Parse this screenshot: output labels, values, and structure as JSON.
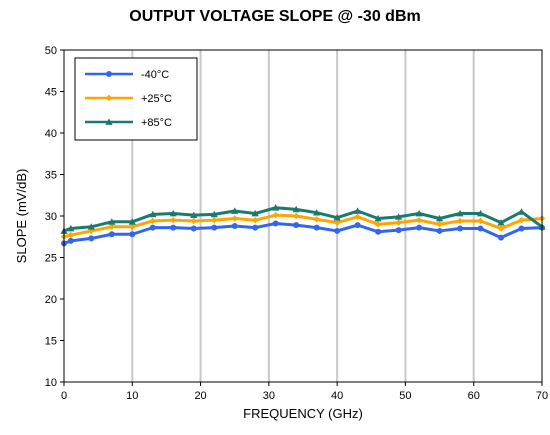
{
  "chart_data": {
    "type": "line",
    "title": "OUTPUT VOLTAGE SLOPE @ -30 dBm",
    "xlabel": "FREQUENCY (GHz)",
    "ylabel": "SLOPE (mV/dB)",
    "xlim": [
      0,
      70
    ],
    "ylim": [
      10,
      50
    ],
    "xticks": [
      "0",
      "10",
      "20",
      "30",
      "40",
      "50",
      "60",
      "70"
    ],
    "yticks": [
      "10",
      "15",
      "20",
      "25",
      "30",
      "35",
      "40",
      "45",
      "50"
    ],
    "grid": "vertical",
    "legend_position": "top-left",
    "x": [
      0,
      1,
      4,
      7,
      10,
      13,
      16,
      19,
      22,
      25,
      28,
      31,
      34,
      37,
      40,
      43,
      46,
      49,
      52,
      55,
      58,
      61,
      64,
      67,
      70
    ],
    "series": [
      {
        "name": "-40°C",
        "color": "#3366ee",
        "marker": "circle",
        "values": [
          26.7,
          27.0,
          27.3,
          27.8,
          27.8,
          28.6,
          28.6,
          28.5,
          28.6,
          28.8,
          28.6,
          29.1,
          28.9,
          28.6,
          28.2,
          28.9,
          28.1,
          28.3,
          28.6,
          28.2,
          28.5,
          28.5,
          27.4,
          28.5,
          28.6
        ]
      },
      {
        "name": "+25°C",
        "color": "#ffa500",
        "marker": "diamond",
        "values": [
          27.5,
          27.7,
          28.2,
          28.7,
          28.7,
          29.4,
          29.5,
          29.4,
          29.5,
          29.7,
          29.5,
          30.1,
          30.0,
          29.6,
          29.2,
          29.9,
          29.0,
          29.2,
          29.5,
          29.0,
          29.4,
          29.4,
          28.5,
          29.5,
          29.7
        ]
      },
      {
        "name": "+85°C",
        "color": "#1a7a6e",
        "marker": "triangle",
        "values": [
          28.2,
          28.5,
          28.7,
          29.3,
          29.3,
          30.2,
          30.3,
          30.1,
          30.2,
          30.6,
          30.3,
          31.0,
          30.8,
          30.4,
          29.8,
          30.6,
          29.7,
          29.9,
          30.3,
          29.7,
          30.3,
          30.3,
          29.2,
          30.5,
          28.7
        ]
      }
    ]
  }
}
